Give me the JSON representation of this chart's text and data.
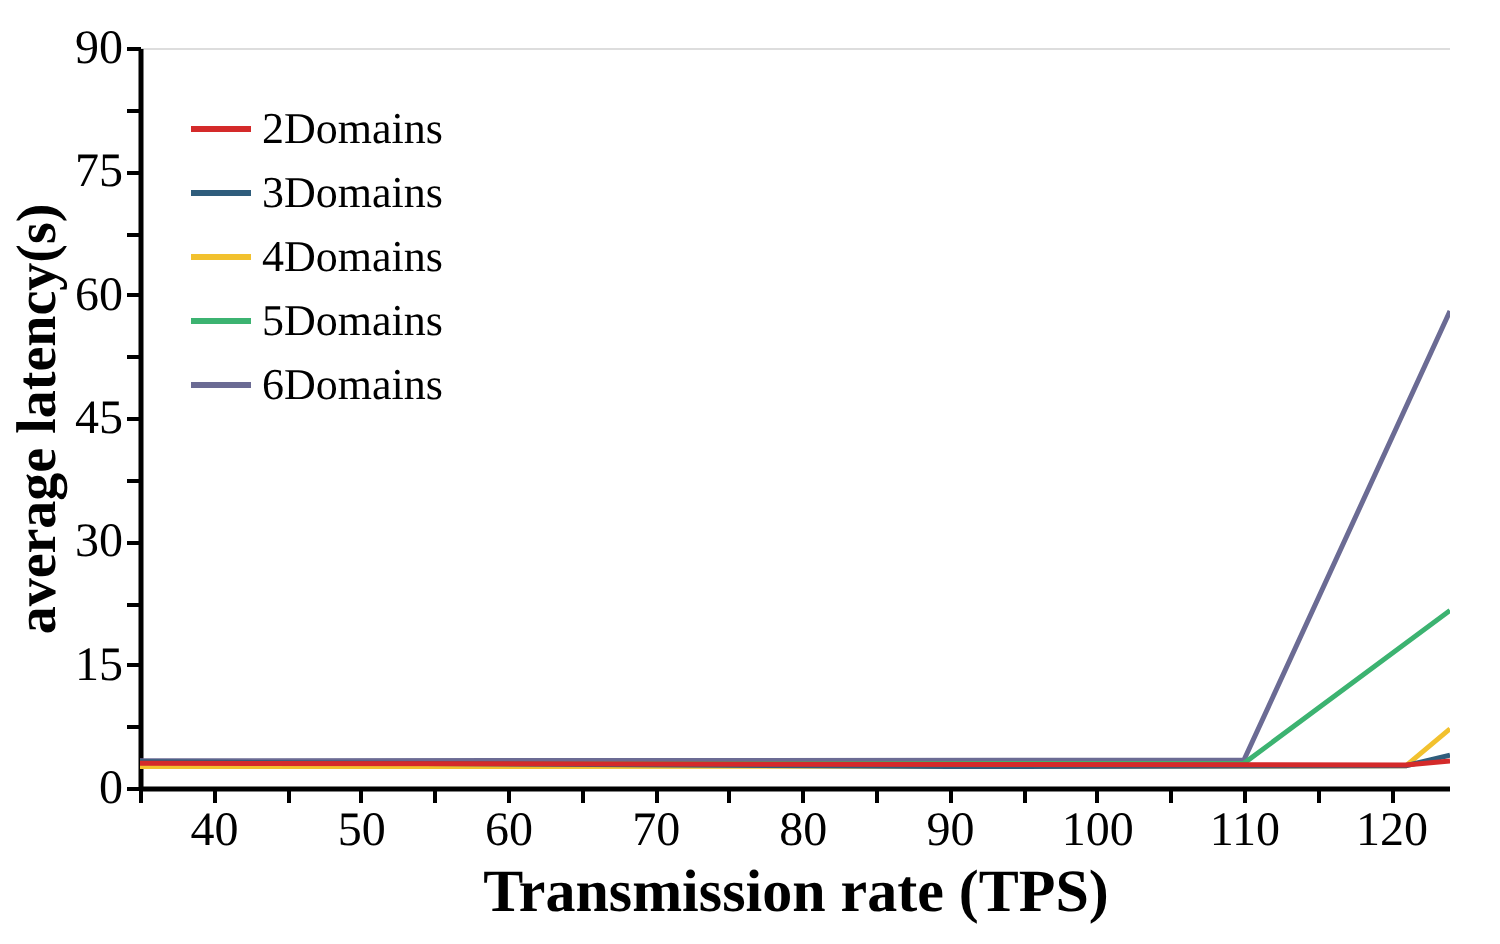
{
  "chart_data": {
    "type": "line",
    "xlabel": "Transmission rate (TPS)",
    "ylabel": "average latency(s)",
    "xlim": [
      35,
      124
    ],
    "ylim": [
      0,
      90
    ],
    "xticks": [
      {
        "value": 35,
        "label": null
      },
      40,
      {
        "value": 45,
        "label": null
      },
      50,
      {
        "value": 55,
        "label": null
      },
      60,
      {
        "value": 65,
        "label": null
      },
      70,
      {
        "value": 75,
        "label": null
      },
      80,
      {
        "value": 85,
        "label": null
      },
      90,
      {
        "value": 95,
        "label": null
      },
      100,
      {
        "value": 105,
        "label": null
      },
      110,
      {
        "value": 115,
        "label": null
      },
      120
    ],
    "yticks": [
      0,
      {
        "value": 7.5,
        "label": null
      },
      15,
      {
        "value": 22.5,
        "label": null
      },
      30,
      {
        "value": 37.5,
        "label": null
      },
      45,
      {
        "value": 52.5,
        "label": null
      },
      60,
      {
        "value": 67.5,
        "label": null
      },
      75,
      {
        "value": 82.5,
        "label": null
      },
      90
    ],
    "grid": false,
    "legend": "top left",
    "marker": "none",
    "line_style": "solid",
    "series": [
      {
        "name": "2Domains",
        "color": "#d42a2a",
        "x": [
          35,
          121,
          124
        ],
        "values": [
          3.0,
          2.8,
          3.3
        ]
      },
      {
        "name": "3Domains",
        "color": "#2f5d7c",
        "x": [
          35,
          90,
          121,
          124
        ],
        "values": [
          3.2,
          2.6,
          2.7,
          4.0
        ]
      },
      {
        "name": "4Domains",
        "color": "#f2c12e",
        "x": [
          35,
          121,
          124
        ],
        "values": [
          2.6,
          2.7,
          7.2
        ]
      },
      {
        "name": "5Domains",
        "color": "#3cb371",
        "x": [
          35,
          110,
          124
        ],
        "values": [
          2.9,
          3.0,
          21.6
        ]
      },
      {
        "name": "6Domains",
        "color": "#6b6b94",
        "x": [
          35,
          110,
          124
        ],
        "values": [
          3.3,
          3.4,
          58
        ]
      }
    ]
  }
}
